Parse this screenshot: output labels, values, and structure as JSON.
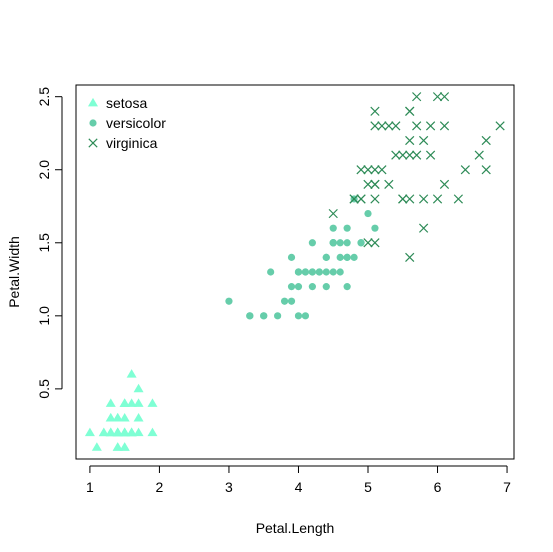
{
  "chart_data": {
    "type": "scatter",
    "xlabel": "Petal.Length",
    "ylabel": "Petal.Width",
    "xlim": [
      0.8,
      7.1
    ],
    "ylim": [
      0.02,
      2.58
    ],
    "x_ticks": [
      1,
      2,
      3,
      4,
      5,
      6,
      7
    ],
    "y_ticks": [
      0.5,
      1.0,
      1.5,
      2.0,
      2.5
    ],
    "x_tick_labels": [
      "1",
      "2",
      "3",
      "4",
      "5",
      "6",
      "7"
    ],
    "y_tick_labels": [
      "0.5",
      "1.0",
      "1.5",
      "2.0",
      "2.5"
    ],
    "grid": false,
    "legend": "top-left",
    "series": [
      {
        "name": "setosa",
        "marker": "triangle",
        "color": "#7FFFD4",
        "points": [
          [
            1.4,
            0.2
          ],
          [
            1.4,
            0.2
          ],
          [
            1.3,
            0.2
          ],
          [
            1.5,
            0.2
          ],
          [
            1.4,
            0.2
          ],
          [
            1.7,
            0.4
          ],
          [
            1.4,
            0.3
          ],
          [
            1.5,
            0.2
          ],
          [
            1.4,
            0.2
          ],
          [
            1.5,
            0.1
          ],
          [
            1.5,
            0.2
          ],
          [
            1.6,
            0.2
          ],
          [
            1.4,
            0.1
          ],
          [
            1.1,
            0.1
          ],
          [
            1.2,
            0.2
          ],
          [
            1.5,
            0.4
          ],
          [
            1.3,
            0.4
          ],
          [
            1.4,
            0.3
          ],
          [
            1.7,
            0.3
          ],
          [
            1.5,
            0.3
          ],
          [
            1.7,
            0.2
          ],
          [
            1.5,
            0.4
          ],
          [
            1.0,
            0.2
          ],
          [
            1.7,
            0.5
          ],
          [
            1.9,
            0.2
          ],
          [
            1.6,
            0.2
          ],
          [
            1.6,
            0.4
          ],
          [
            1.5,
            0.2
          ],
          [
            1.4,
            0.2
          ],
          [
            1.6,
            0.2
          ],
          [
            1.6,
            0.2
          ],
          [
            1.5,
            0.4
          ],
          [
            1.5,
            0.1
          ],
          [
            1.4,
            0.2
          ],
          [
            1.5,
            0.2
          ],
          [
            1.2,
            0.2
          ],
          [
            1.3,
            0.2
          ],
          [
            1.4,
            0.1
          ],
          [
            1.3,
            0.2
          ],
          [
            1.5,
            0.2
          ],
          [
            1.3,
            0.3
          ],
          [
            1.3,
            0.3
          ],
          [
            1.3,
            0.2
          ],
          [
            1.6,
            0.6
          ],
          [
            1.9,
            0.4
          ],
          [
            1.4,
            0.3
          ],
          [
            1.6,
            0.2
          ],
          [
            1.4,
            0.2
          ],
          [
            1.5,
            0.2
          ],
          [
            1.4,
            0.2
          ]
        ]
      },
      {
        "name": "versicolor",
        "marker": "circle",
        "color": "#66CDAA",
        "points": [
          [
            4.7,
            1.4
          ],
          [
            4.5,
            1.5
          ],
          [
            4.9,
            1.5
          ],
          [
            4.0,
            1.3
          ],
          [
            4.6,
            1.5
          ],
          [
            4.5,
            1.3
          ],
          [
            4.7,
            1.6
          ],
          [
            3.3,
            1.0
          ],
          [
            4.6,
            1.3
          ],
          [
            3.9,
            1.4
          ],
          [
            3.5,
            1.0
          ],
          [
            4.2,
            1.5
          ],
          [
            4.0,
            1.0
          ],
          [
            4.7,
            1.4
          ],
          [
            3.6,
            1.3
          ],
          [
            4.4,
            1.4
          ],
          [
            4.5,
            1.5
          ],
          [
            4.1,
            1.0
          ],
          [
            4.5,
            1.5
          ],
          [
            3.9,
            1.1
          ],
          [
            4.8,
            1.8
          ],
          [
            4.0,
            1.3
          ],
          [
            4.9,
            1.5
          ],
          [
            4.7,
            1.2
          ],
          [
            4.3,
            1.3
          ],
          [
            4.4,
            1.4
          ],
          [
            4.8,
            1.4
          ],
          [
            5.0,
            1.7
          ],
          [
            4.5,
            1.5
          ],
          [
            3.5,
            1.0
          ],
          [
            3.8,
            1.1
          ],
          [
            3.7,
            1.0
          ],
          [
            3.9,
            1.2
          ],
          [
            5.1,
            1.6
          ],
          [
            4.5,
            1.5
          ],
          [
            4.5,
            1.6
          ],
          [
            4.7,
            1.5
          ],
          [
            4.4,
            1.3
          ],
          [
            4.1,
            1.3
          ],
          [
            4.0,
            1.3
          ],
          [
            4.4,
            1.2
          ],
          [
            4.6,
            1.4
          ],
          [
            4.0,
            1.2
          ],
          [
            3.3,
            1.0
          ],
          [
            4.2,
            1.3
          ],
          [
            4.2,
            1.2
          ],
          [
            4.2,
            1.3
          ],
          [
            4.3,
            1.3
          ],
          [
            3.0,
            1.1
          ],
          [
            4.1,
            1.3
          ]
        ]
      },
      {
        "name": "virginica",
        "marker": "cross",
        "color": "#2E8B57",
        "points": [
          [
            6.0,
            2.5
          ],
          [
            5.1,
            1.9
          ],
          [
            5.9,
            2.1
          ],
          [
            5.6,
            1.8
          ],
          [
            5.8,
            2.2
          ],
          [
            6.6,
            2.1
          ],
          [
            4.5,
            1.7
          ],
          [
            6.3,
            1.8
          ],
          [
            5.8,
            1.8
          ],
          [
            6.1,
            2.5
          ],
          [
            5.1,
            2.0
          ],
          [
            5.3,
            1.9
          ],
          [
            5.5,
            2.1
          ],
          [
            5.0,
            2.0
          ],
          [
            5.1,
            2.4
          ],
          [
            5.3,
            2.3
          ],
          [
            5.5,
            1.8
          ],
          [
            6.7,
            2.2
          ],
          [
            6.9,
            2.3
          ],
          [
            5.0,
            1.5
          ],
          [
            5.7,
            2.3
          ],
          [
            4.9,
            2.0
          ],
          [
            6.7,
            2.0
          ],
          [
            4.9,
            1.8
          ],
          [
            5.7,
            2.1
          ],
          [
            6.0,
            1.8
          ],
          [
            4.8,
            1.8
          ],
          [
            4.9,
            1.8
          ],
          [
            5.6,
            2.1
          ],
          [
            5.8,
            1.6
          ],
          [
            6.1,
            1.9
          ],
          [
            6.4,
            2.0
          ],
          [
            5.6,
            2.2
          ],
          [
            5.1,
            1.5
          ],
          [
            5.6,
            1.4
          ],
          [
            6.1,
            2.3
          ],
          [
            5.6,
            2.4
          ],
          [
            5.5,
            1.8
          ],
          [
            4.8,
            1.8
          ],
          [
            5.4,
            2.1
          ],
          [
            5.6,
            2.4
          ],
          [
            5.1,
            2.3
          ],
          [
            5.1,
            1.9
          ],
          [
            5.9,
            2.3
          ],
          [
            5.7,
            2.5
          ],
          [
            5.2,
            2.3
          ],
          [
            5.0,
            1.9
          ],
          [
            5.2,
            2.0
          ],
          [
            5.4,
            2.3
          ],
          [
            5.1,
            1.8
          ]
        ]
      }
    ]
  }
}
